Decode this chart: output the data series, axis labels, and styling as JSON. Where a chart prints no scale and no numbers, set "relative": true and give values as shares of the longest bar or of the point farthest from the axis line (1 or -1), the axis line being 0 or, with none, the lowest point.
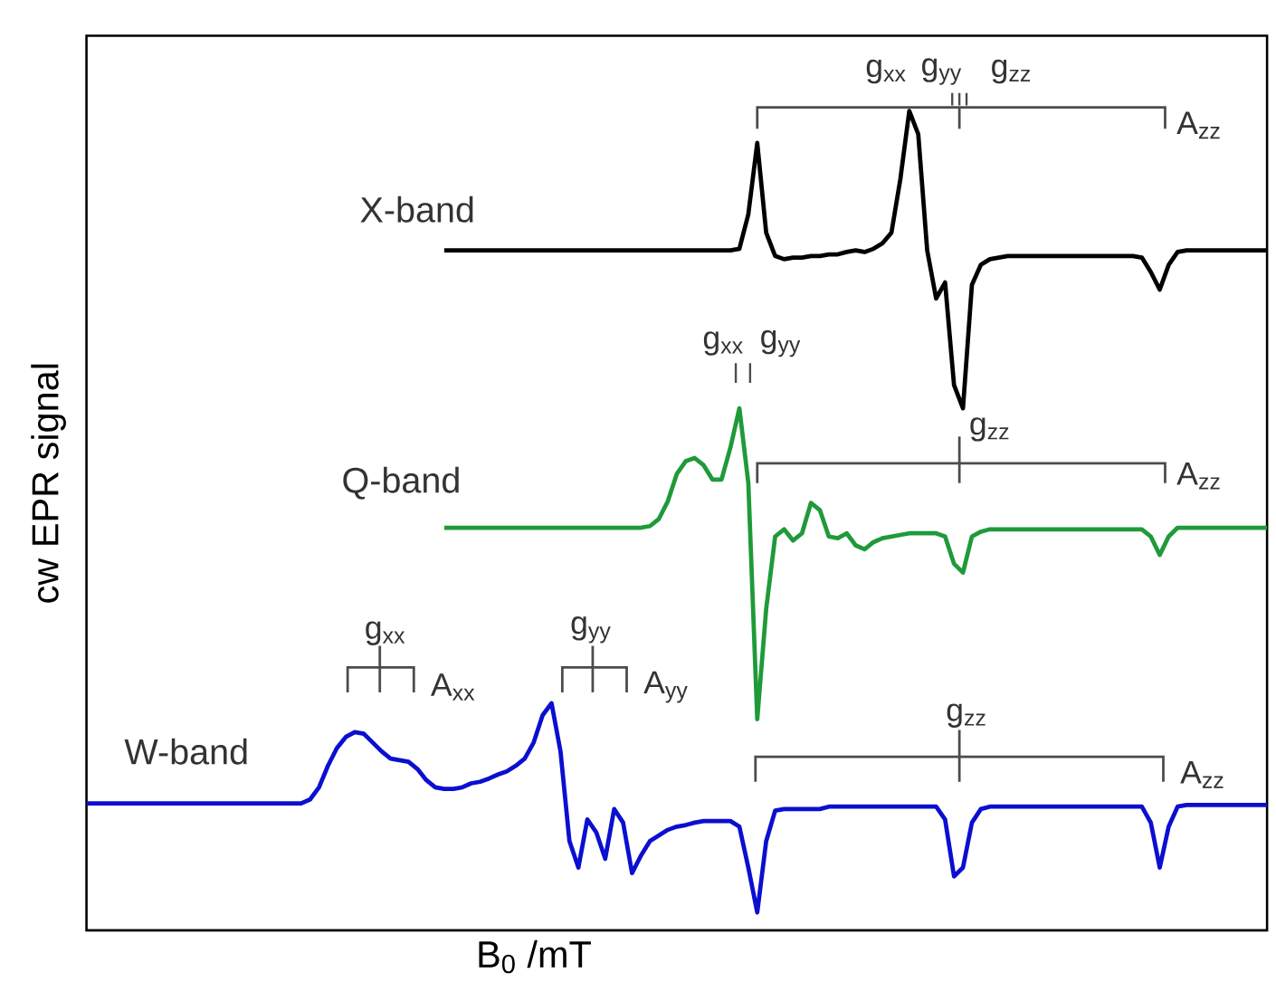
{
  "chart_data": {
    "type": "line",
    "relative": true,
    "xlabel": "B$_{0}$ /mT",
    "ylabel": "cw EPR signal",
    "categories": [
      null,
      null,
      null,
      null,
      null,
      null,
      null,
      null,
      null,
      null,
      null,
      null,
      null,
      null,
      null,
      null,
      null,
      null,
      null,
      null,
      null,
      null,
      null,
      null,
      null,
      null,
      null,
      null,
      null,
      null,
      null,
      null,
      null,
      null,
      null,
      null,
      null,
      null,
      null,
      null,
      null,
      null,
      null,
      null,
      null,
      null,
      null,
      null,
      null,
      null,
      null,
      null,
      null,
      null,
      null,
      null,
      null,
      null,
      null,
      null,
      null,
      null,
      null,
      null,
      null,
      null,
      null,
      null,
      null,
      null,
      null,
      null,
      null,
      null,
      null,
      null,
      null,
      null,
      null,
      null,
      null,
      null,
      null,
      null,
      null,
      null,
      null,
      null,
      null,
      null,
      null,
      null,
      null,
      null,
      null,
      null,
      null,
      null,
      null,
      null,
      null,
      null,
      null,
      null,
      null,
      null,
      null,
      null,
      null,
      null,
      null,
      null,
      null,
      null,
      null,
      null,
      null,
      null,
      null,
      null,
      null,
      null,
      null,
      null,
      null,
      null,
      null,
      null,
      null,
      null,
      null,
      null,
      null
    ],
    "series": [
      {
        "name": "X-band",
        "color": "#000000",
        "values": [
          null,
          null,
          null,
          null,
          null,
          null,
          null,
          null,
          null,
          null,
          null,
          null,
          null,
          null,
          null,
          null,
          null,
          null,
          null,
          null,
          null,
          null,
          null,
          null,
          null,
          null,
          null,
          null,
          null,
          null,
          null,
          null,
          null,
          null,
          null,
          null,
          null,
          null,
          null,
          null,
          0.826,
          0.826,
          0.826,
          0.826,
          0.826,
          0.826,
          0.826,
          0.826,
          0.826,
          0.826,
          0.826,
          0.826,
          0.826,
          0.826,
          0.826,
          0.826,
          0.826,
          0.826,
          0.826,
          0.826,
          0.826,
          0.826,
          0.826,
          0.826,
          0.826,
          0.826,
          0.826,
          0.826,
          0.826,
          0.826,
          0.826,
          0.826,
          0.826,
          0.828,
          0.871,
          0.96,
          0.848,
          0.819,
          0.815,
          0.817,
          0.817,
          0.819,
          0.819,
          0.821,
          0.821,
          0.824,
          0.826,
          0.824,
          0.828,
          0.835,
          0.848,
          0.915,
          1.0,
          0.971,
          0.826,
          0.766,
          0.786,
          0.658,
          0.629,
          0.783,
          0.808,
          0.815,
          0.817,
          0.819,
          0.819,
          0.819,
          0.819,
          0.819,
          0.819,
          0.819,
          0.819,
          0.819,
          0.819,
          0.819,
          0.819,
          0.819,
          0.819,
          0.819,
          0.817,
          0.799,
          0.777,
          0.808,
          0.824,
          0.826,
          0.826,
          0.826,
          0.826,
          0.826,
          0.826,
          0.826,
          0.826,
          0.826,
          0.826
        ]
      },
      {
        "name": "Q-band",
        "color": "#1f9a3a",
        "values": [
          null,
          null,
          null,
          null,
          null,
          null,
          null,
          null,
          null,
          null,
          null,
          null,
          null,
          null,
          null,
          null,
          null,
          null,
          null,
          null,
          null,
          null,
          null,
          null,
          null,
          null,
          null,
          null,
          null,
          null,
          null,
          null,
          null,
          null,
          null,
          null,
          null,
          null,
          null,
          null,
          0.48,
          0.48,
          0.48,
          0.48,
          0.48,
          0.48,
          0.48,
          0.48,
          0.48,
          0.48,
          0.48,
          0.48,
          0.48,
          0.48,
          0.48,
          0.48,
          0.48,
          0.48,
          0.48,
          0.48,
          0.48,
          0.48,
          0.48,
          0.482,
          0.491,
          0.513,
          0.547,
          0.563,
          0.567,
          0.558,
          0.54,
          0.54,
          0.58,
          0.629,
          0.536,
          0.241,
          0.379,
          0.469,
          0.478,
          0.464,
          0.473,
          0.511,
          0.502,
          0.469,
          0.467,
          0.473,
          0.458,
          0.453,
          0.462,
          0.467,
          0.469,
          0.471,
          0.473,
          0.473,
          0.473,
          0.473,
          0.469,
          0.435,
          0.424,
          0.469,
          0.475,
          0.478,
          0.478,
          0.478,
          0.478,
          0.478,
          0.478,
          0.478,
          0.478,
          0.478,
          0.478,
          0.478,
          0.478,
          0.478,
          0.478,
          0.478,
          0.478,
          0.478,
          0.478,
          0.469,
          0.446,
          0.469,
          0.48,
          0.48,
          0.48,
          0.48,
          0.48,
          0.48,
          0.48,
          0.48,
          0.48,
          0.48,
          0.48
        ]
      },
      {
        "name": "W-band",
        "color": "#0a0fd0",
        "values": [
          0.136,
          0.136,
          0.136,
          0.136,
          0.136,
          0.136,
          0.136,
          0.136,
          0.136,
          0.136,
          0.136,
          0.136,
          0.136,
          0.136,
          0.136,
          0.136,
          0.136,
          0.136,
          0.136,
          0.136,
          0.136,
          0.136,
          0.136,
          0.136,
          0.136,
          0.141,
          0.156,
          0.183,
          0.205,
          0.219,
          0.225,
          0.223,
          0.212,
          0.201,
          0.192,
          0.19,
          0.188,
          0.179,
          0.165,
          0.156,
          0.154,
          0.154,
          0.156,
          0.161,
          0.163,
          0.167,
          0.172,
          0.176,
          0.183,
          0.192,
          0.212,
          0.246,
          0.261,
          0.201,
          0.089,
          0.056,
          0.116,
          0.1,
          0.067,
          0.129,
          0.112,
          0.049,
          0.071,
          0.089,
          0.096,
          0.103,
          0.107,
          0.109,
          0.112,
          0.114,
          0.114,
          0.114,
          0.114,
          0.107,
          0.056,
          0.0,
          0.089,
          0.127,
          0.129,
          0.129,
          0.129,
          0.129,
          0.129,
          0.132,
          0.132,
          0.132,
          0.132,
          0.132,
          0.132,
          0.132,
          0.132,
          0.132,
          0.132,
          0.132,
          0.132,
          0.132,
          0.116,
          0.045,
          0.056,
          0.112,
          0.129,
          0.132,
          0.132,
          0.132,
          0.132,
          0.132,
          0.132,
          0.132,
          0.132,
          0.132,
          0.132,
          0.132,
          0.132,
          0.132,
          0.132,
          0.132,
          0.132,
          0.132,
          0.132,
          0.112,
          0.056,
          0.107,
          0.132,
          0.134,
          0.134,
          0.134,
          0.134,
          0.134,
          0.134,
          0.134,
          0.134,
          0.134,
          0.134
        ]
      }
    ],
    "annotations": [
      "g$_{xx}$",
      "g$_{yy}$",
      "g$_{zz}$",
      "A$_{zz}$",
      "g$_{xx}$",
      "g$_{yy}$",
      "g$_{zz}$",
      "A$_{zz}$",
      "g$_{xx}$",
      "A$_{xx}$",
      "g$_{yy}$",
      "A$_{yy}$",
      "g$_{zz}$",
      "A$_{zz}$"
    ]
  }
}
